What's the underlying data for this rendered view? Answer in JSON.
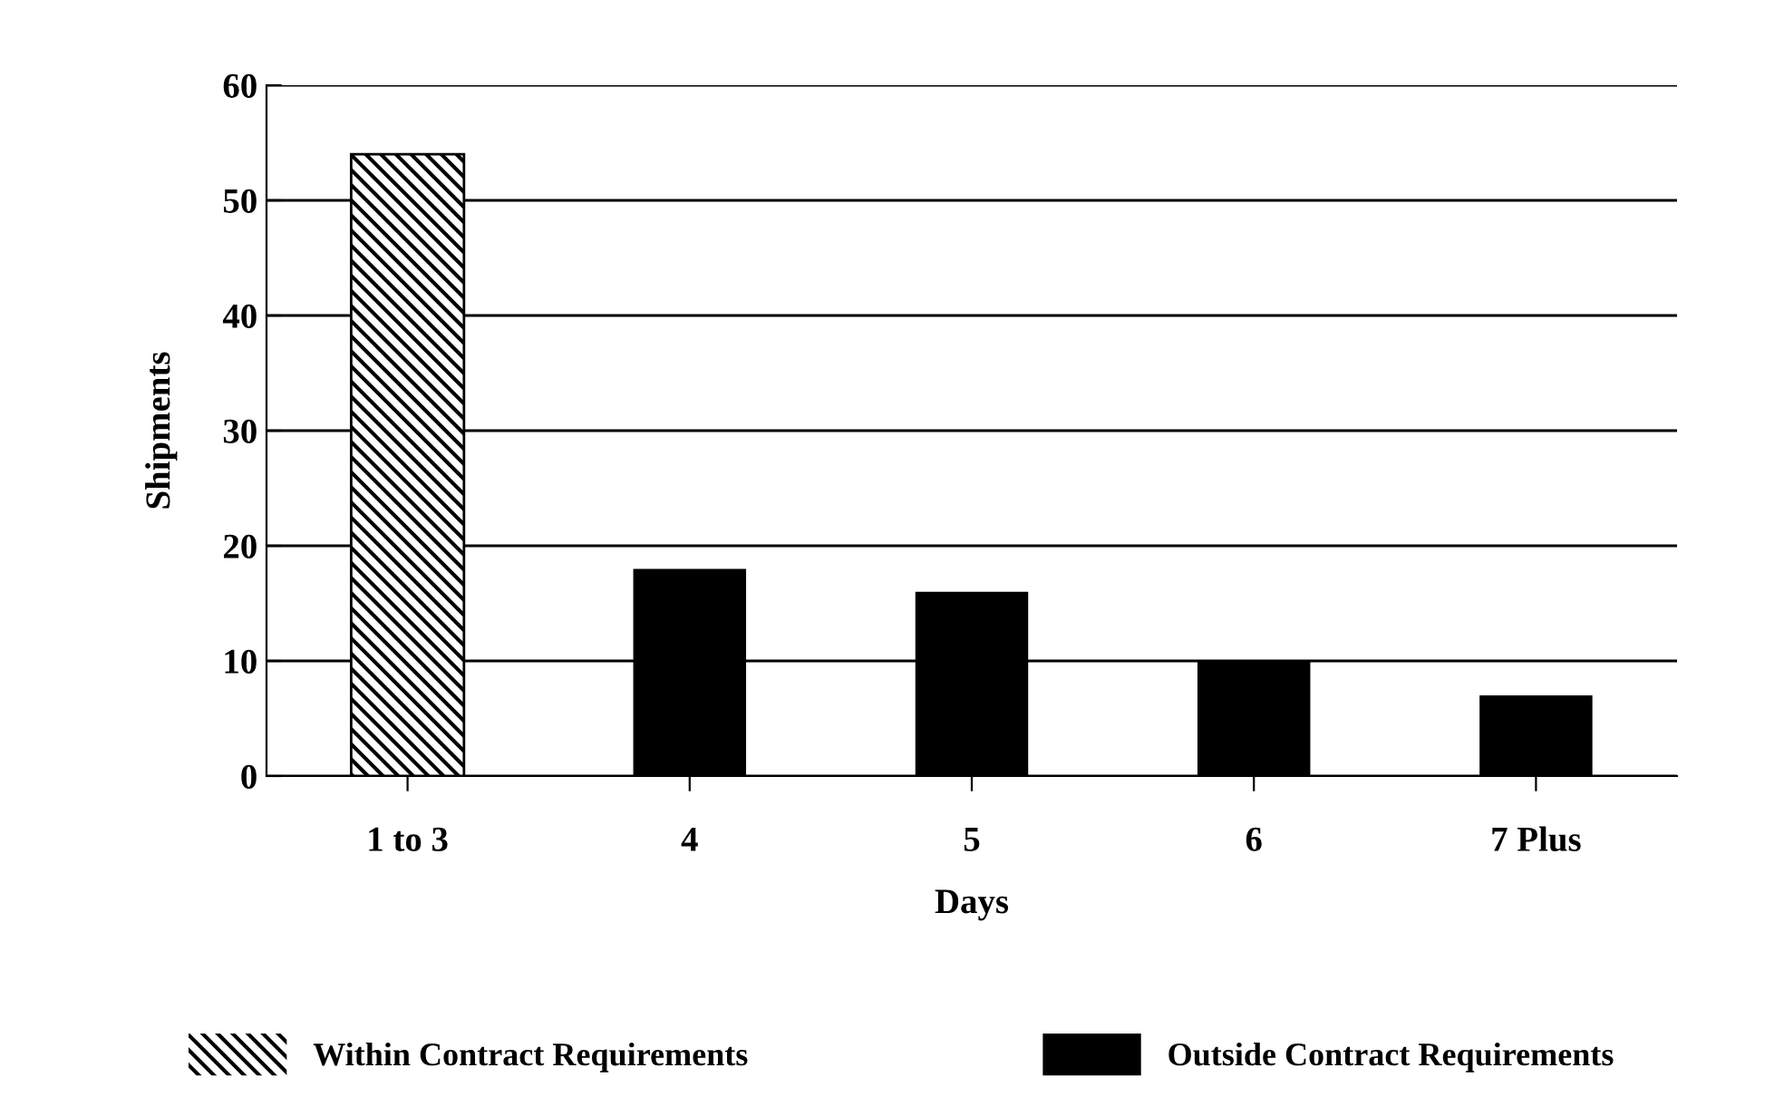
{
  "chart_data": {
    "type": "bar",
    "xlabel": "Days",
    "ylabel": "Shipments",
    "categories": [
      "1 to 3",
      "4",
      "5",
      "6",
      "7 Plus"
    ],
    "series": [
      {
        "name": "Within Contract Requirements",
        "color": "#000000",
        "values": [
          54,
          null,
          null,
          null,
          null
        ]
      },
      {
        "name": "Outside Contract Requirements",
        "color": "#000000",
        "values": [
          null,
          18,
          16,
          10,
          7
        ]
      }
    ],
    "ylim": [
      0,
      60
    ],
    "yticks": [
      0,
      10,
      20,
      30,
      40,
      50,
      60
    ],
    "grid": "y",
    "legend": "bottom"
  }
}
